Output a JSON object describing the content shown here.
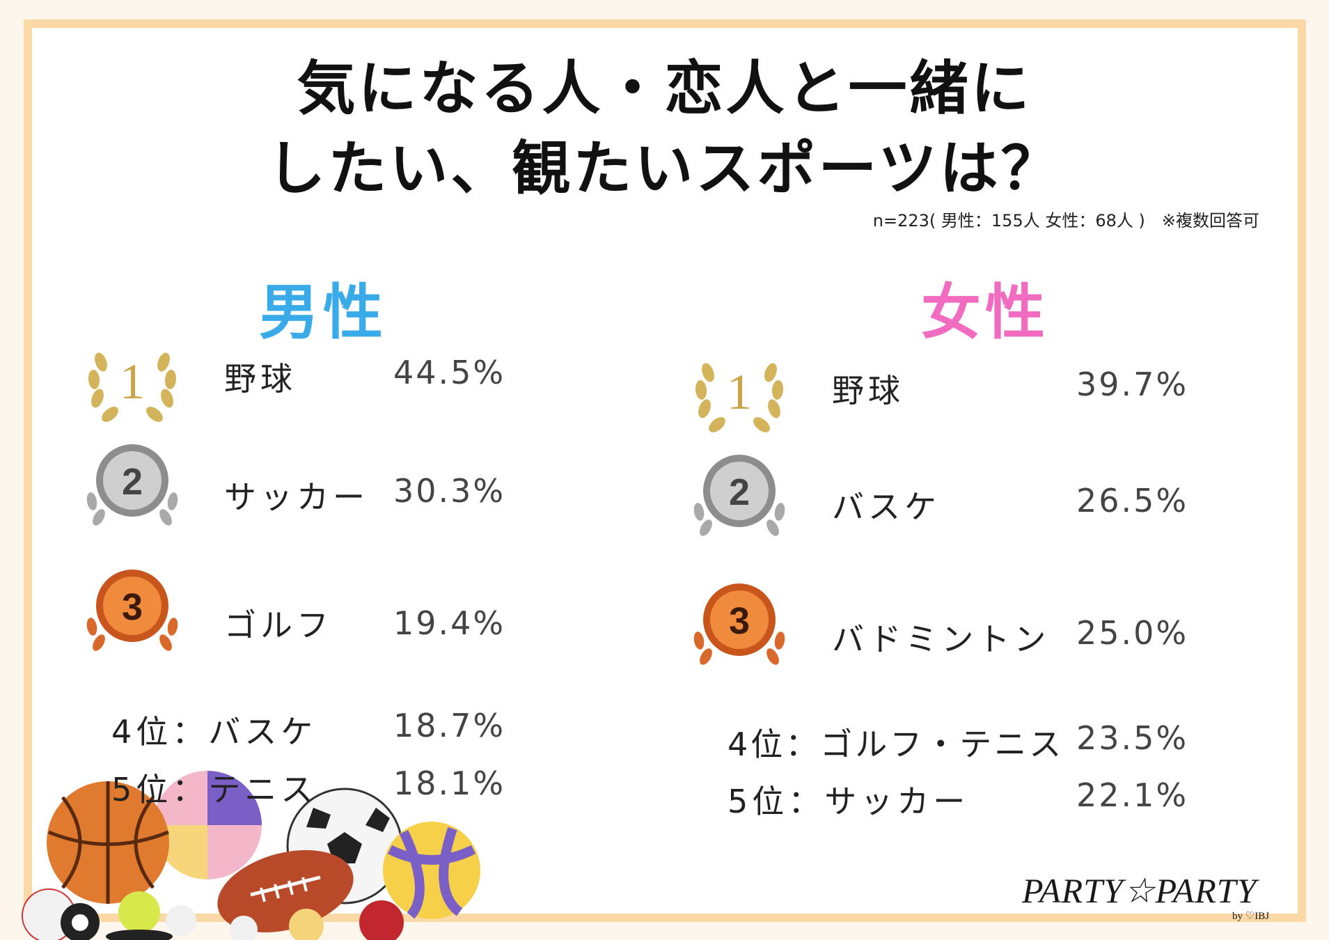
{
  "title_line1": "気になる人・恋人と一緒に",
  "title_line2": "したい、観たいスポーツは？",
  "note": "n=223( 男性：155人 女性：68人 )　※複数回答可",
  "male": {
    "heading": "男性",
    "top": [
      {
        "rank": "1",
        "name": "野球",
        "pct": "44.5%"
      },
      {
        "rank": "2",
        "name": "サッカー",
        "pct": "30.3%"
      },
      {
        "rank": "3",
        "name": "ゴルフ",
        "pct": "19.4%"
      }
    ],
    "others": [
      {
        "label": "4位：バスケ",
        "pct": "18.7%"
      },
      {
        "label": "5位：テニス",
        "pct": "18.1%"
      }
    ]
  },
  "female": {
    "heading": "女性",
    "top": [
      {
        "rank": "1",
        "name": "野球",
        "pct": "39.7%"
      },
      {
        "rank": "2",
        "name": "バスケ",
        "pct": "26.5%"
      },
      {
        "rank": "3",
        "name": "バドミントン",
        "pct": "25.0%"
      }
    ],
    "others": [
      {
        "label": "4位：ゴルフ・テニス",
        "pct": "23.5%"
      },
      {
        "label": "5位：サッカー",
        "pct": "22.1%"
      }
    ]
  },
  "logo": "PARTY☆PARTY",
  "logo_sub": "by ♡IBJ",
  "colors": {
    "border": "#fbd9a6",
    "male": "#3aabe9",
    "female": "#f16cc0",
    "gold": "#d4b45a",
    "silver": "#a9a9a9",
    "bronze": "#d9692a"
  }
}
